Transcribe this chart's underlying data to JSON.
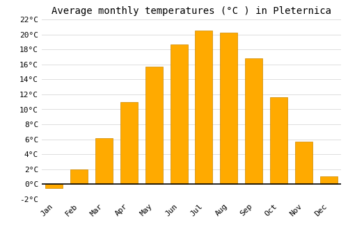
{
  "title": "Average monthly temperatures (°C ) in Pleternica",
  "months": [
    "Jan",
    "Feb",
    "Mar",
    "Apr",
    "May",
    "Jun",
    "Jul",
    "Aug",
    "Sep",
    "Oct",
    "Nov",
    "Dec"
  ],
  "values": [
    -0.5,
    2.0,
    6.2,
    11.0,
    15.7,
    18.7,
    20.5,
    20.2,
    16.8,
    11.6,
    5.7,
    1.1
  ],
  "bar_color": "#FFAA00",
  "bar_edge_color": "#CC8800",
  "ylim": [
    -2,
    22
  ],
  "yticks": [
    22,
    20,
    18,
    16,
    14,
    12,
    10,
    8,
    6,
    4,
    2,
    0,
    -2
  ],
  "background_color": "#FFFFFF",
  "grid_color": "#DDDDDD",
  "title_fontsize": 10,
  "tick_fontsize": 8,
  "font_family": "monospace"
}
